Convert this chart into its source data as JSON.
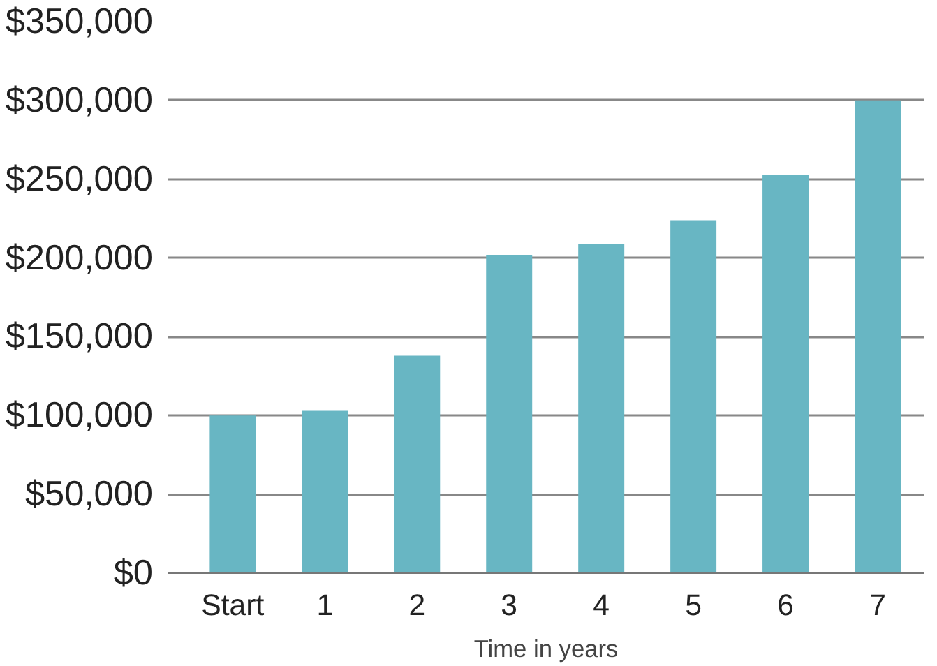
{
  "chart_data": {
    "type": "bar",
    "xlabel": "Time in years",
    "categories": [
      "Start",
      "1",
      "2",
      "3",
      "4",
      "5",
      "6",
      "7"
    ],
    "values": [
      100000,
      103000,
      138000,
      202000,
      209000,
      224000,
      253000,
      300000
    ],
    "color": "#68b6c3",
    "ylim": [
      0,
      350000
    ],
    "yticks": [
      {
        "value": 0,
        "label": "$0"
      },
      {
        "value": 50000,
        "label": "$50,000"
      },
      {
        "value": 100000,
        "label": "$100,000"
      },
      {
        "value": 150000,
        "label": "$150,000"
      },
      {
        "value": 200000,
        "label": "$200,000"
      },
      {
        "value": 250000,
        "label": "$250,000"
      },
      {
        "value": 300000,
        "label": "$300,000"
      },
      {
        "value": 350000,
        "label": "$350,000"
      }
    ],
    "grid": "y"
  }
}
